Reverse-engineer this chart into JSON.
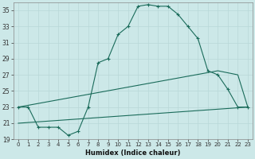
{
  "xlabel": "Humidex (Indice chaleur)",
  "bg_color": "#cce8e8",
  "line_color": "#1a6b5a",
  "grid_color": "#b8d8d8",
  "xlim": [
    -0.5,
    23.5
  ],
  "ylim": [
    19,
    36
  ],
  "yticks": [
    19,
    21,
    23,
    25,
    27,
    29,
    31,
    33,
    35
  ],
  "xticks": [
    0,
    1,
    2,
    3,
    4,
    5,
    6,
    7,
    8,
    9,
    10,
    11,
    12,
    13,
    14,
    15,
    16,
    17,
    18,
    19,
    20,
    21,
    22,
    23
  ],
  "line1_x": [
    0,
    1,
    2,
    3,
    4,
    5,
    6,
    7,
    8,
    9,
    10,
    11,
    12,
    13,
    14,
    15,
    16,
    17,
    18,
    19,
    20,
    21,
    22,
    23
  ],
  "line1_y": [
    23,
    23,
    20.5,
    20.5,
    20.5,
    19.5,
    20,
    23,
    28.5,
    29,
    32,
    33,
    35.5,
    35.7,
    35.5,
    35.5,
    34.5,
    33,
    31.5,
    27.5,
    27,
    25.2,
    23,
    23
  ],
  "line2_x": [
    0,
    20,
    22,
    23
  ],
  "line2_y": [
    23,
    27.5,
    27,
    23
  ],
  "line3_x": [
    0,
    23
  ],
  "line3_y": [
    21,
    23
  ]
}
